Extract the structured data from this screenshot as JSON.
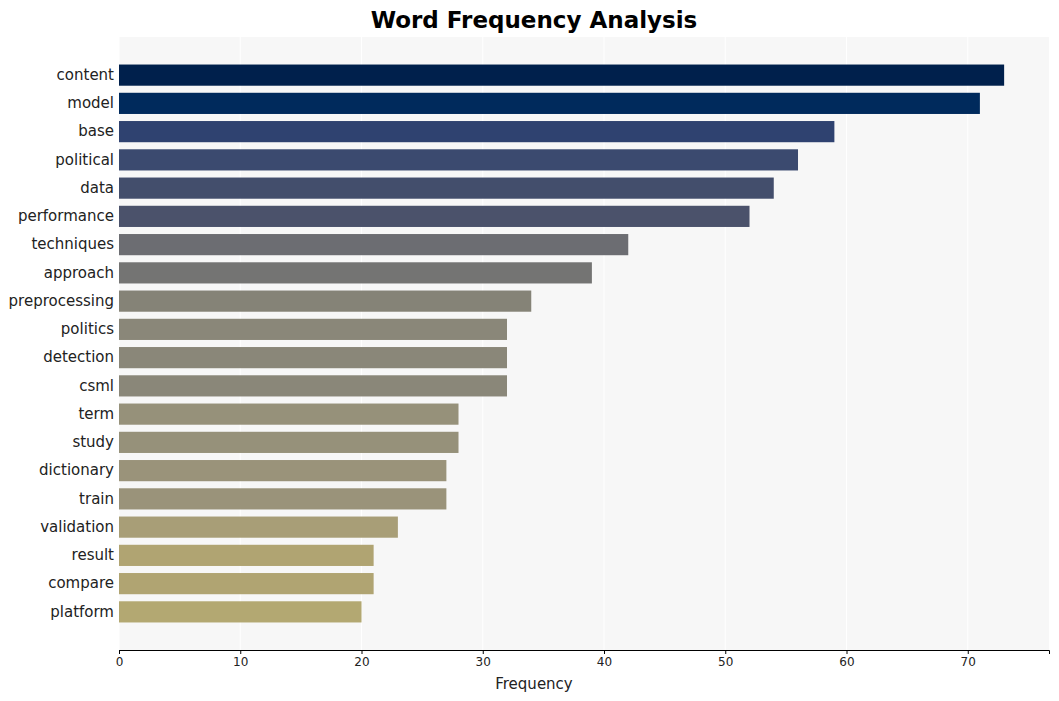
{
  "chart_data": {
    "type": "bar",
    "orientation": "horizontal",
    "title": "Word Frequency Analysis",
    "x_label": "Frequency",
    "categories": [
      "content",
      "model",
      "base",
      "political",
      "data",
      "performance",
      "techniques",
      "approach",
      "preprocessing",
      "politics",
      "detection",
      "csml",
      "term",
      "study",
      "dictionary",
      "train",
      "validation",
      "result",
      "compare",
      "platform"
    ],
    "values": [
      73,
      71,
      59,
      56,
      54,
      52,
      42,
      39,
      34,
      32,
      32,
      32,
      28,
      28,
      27,
      27,
      23,
      21,
      21,
      20
    ],
    "colors": [
      "#00204c",
      "#002a5c",
      "#2f4270",
      "#3b4a6f",
      "#434e6c",
      "#4b526b",
      "#6c6d72",
      "#747473",
      "#858377",
      "#8a8779",
      "#8a8779",
      "#8a8779",
      "#96917a",
      "#96917a",
      "#9a937a",
      "#9a937a",
      "#a89e77",
      "#b0a472",
      "#b0a472",
      "#b3a872"
    ],
    "xlim": [
      0,
      76.7
    ],
    "xticks": [
      0,
      10,
      20,
      30,
      40,
      50,
      60,
      70
    ],
    "grid": true
  }
}
